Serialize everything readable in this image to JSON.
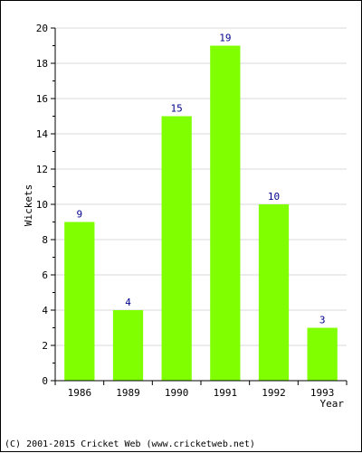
{
  "chart_data": {
    "type": "bar",
    "categories": [
      "1986",
      "1989",
      "1990",
      "1991",
      "1992",
      "1993"
    ],
    "values": [
      9,
      4,
      15,
      19,
      10,
      3
    ],
    "xlabel": "Year",
    "ylabel": "Wickets",
    "ylim": [
      0,
      20
    ],
    "yticks": [
      0,
      2,
      4,
      6,
      8,
      10,
      12,
      14,
      16,
      18,
      20
    ],
    "grid": true,
    "legend": "none",
    "data_labels": true
  },
  "colors": {
    "bar": "#80ff00",
    "value_label": "#00008b",
    "grid": "#d8d8d8",
    "axis": "#000000"
  },
  "footer": {
    "copyright": "(C) 2001-2015 Cricket Web (www.cricketweb.net)"
  }
}
